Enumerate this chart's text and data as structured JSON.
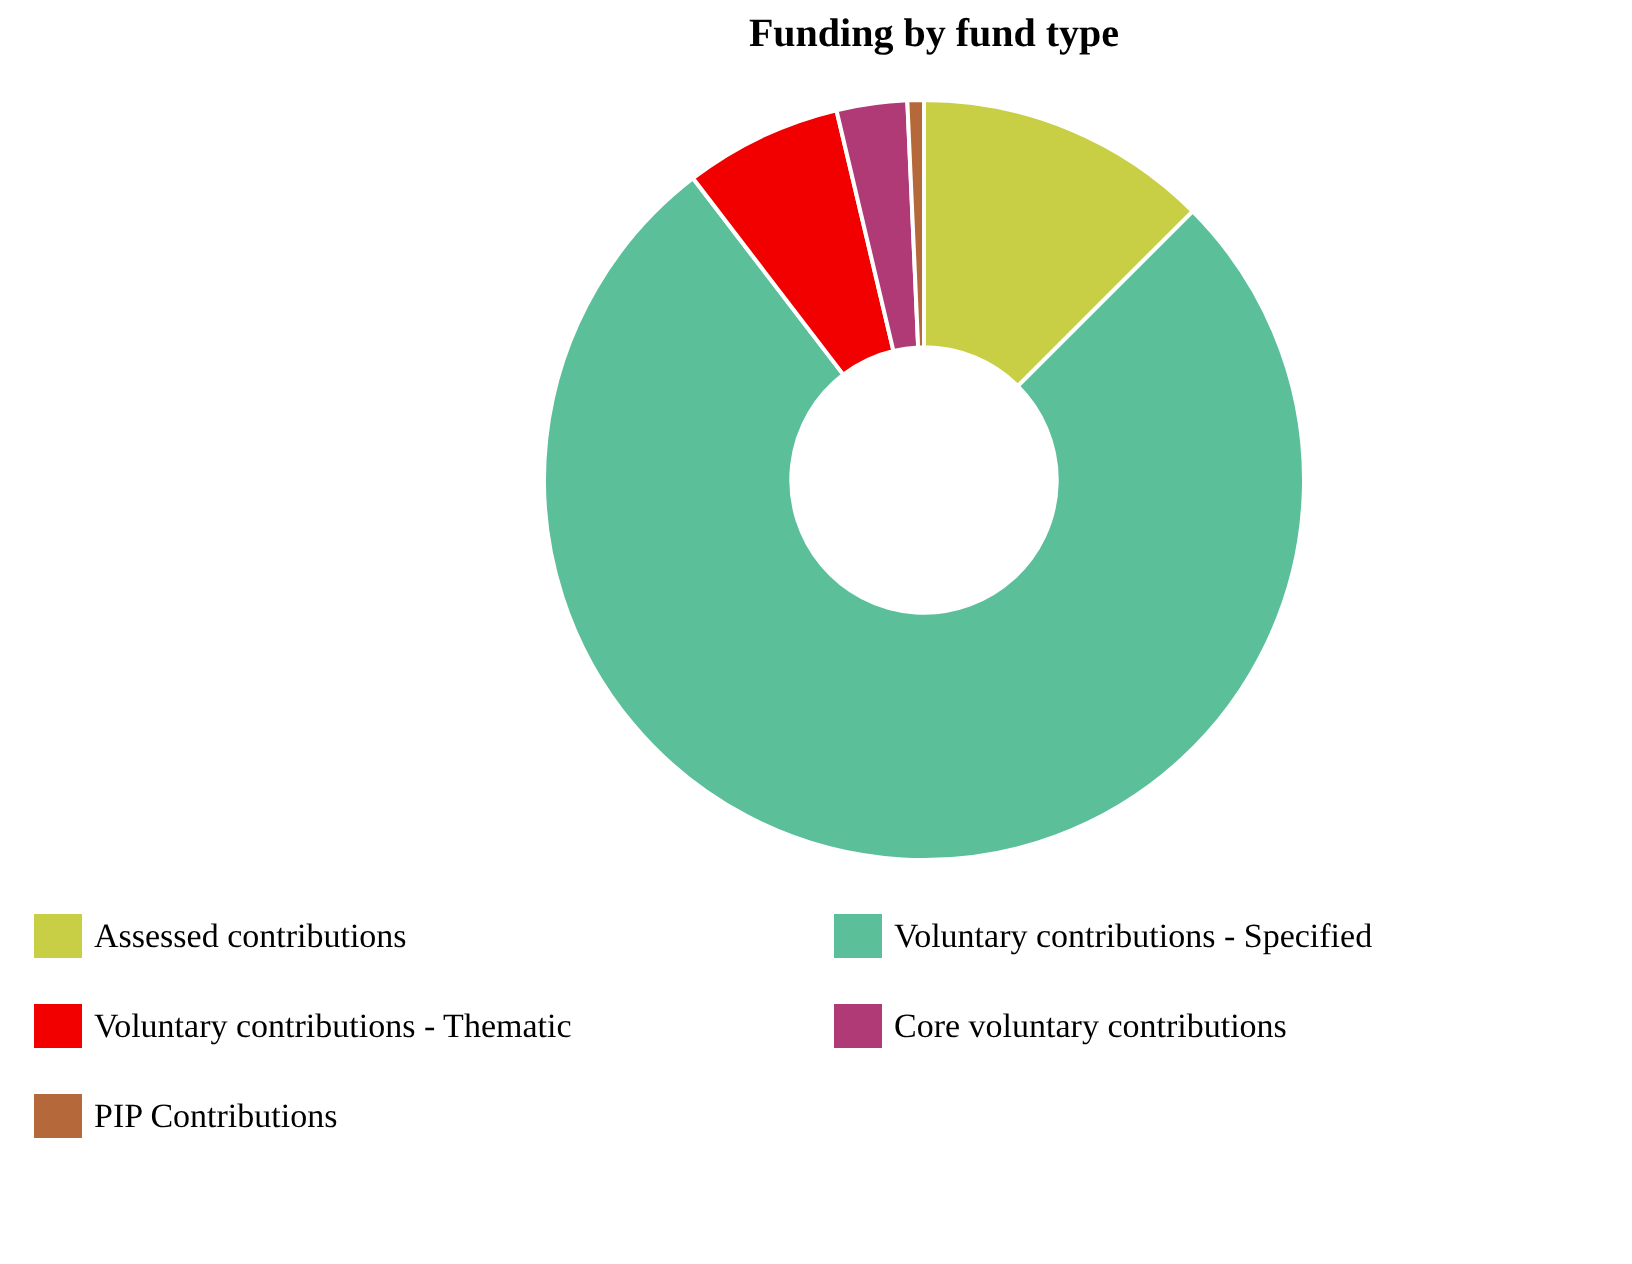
{
  "chart_data": {
    "type": "donut",
    "title": "Funding by fund type",
    "categories": [
      "Assessed contributions",
      "Voluntary contributions - Specified",
      "Voluntary contributions - Thematic",
      "Core voluntary contributions",
      "PIP Contributions"
    ],
    "values": [
      12.5,
      77.1,
      6.7,
      3,
      0.7
    ],
    "colors": [
      "#c8cf45",
      "#5bbf9a",
      "#f20000",
      "#b03a76",
      "#b5683a"
    ],
    "legend": "bottom"
  }
}
